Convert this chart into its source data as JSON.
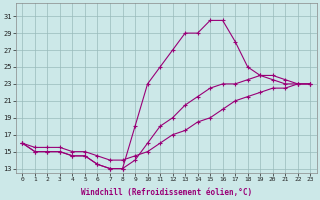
{
  "xlabel": "Windchill (Refroidissement éolien,°C)",
  "bg_color": "#cce8e8",
  "line_color": "#990077",
  "grid_color": "#99bbbb",
  "x_ticks": [
    0,
    1,
    2,
    3,
    4,
    5,
    6,
    7,
    8,
    9,
    10,
    11,
    12,
    13,
    14,
    15,
    16,
    17,
    18,
    19,
    20,
    21,
    22,
    23
  ],
  "y_ticks": [
    13,
    15,
    17,
    19,
    21,
    23,
    25,
    27,
    29,
    31
  ],
  "xlim": [
    -0.5,
    23.5
  ],
  "ylim": [
    12.5,
    32.5
  ],
  "lines": [
    {
      "x": [
        0,
        1,
        2,
        3,
        4,
        5,
        6,
        7,
        8,
        9,
        10,
        11,
        12,
        13,
        14,
        15,
        16,
        17,
        18,
        19,
        20,
        21,
        22,
        23
      ],
      "y": [
        16,
        15,
        15,
        15,
        14.5,
        14.5,
        13.5,
        13,
        13,
        18,
        23,
        25,
        27,
        29,
        29,
        30.5,
        30.5,
        28,
        25,
        24,
        23.5,
        23,
        23,
        23
      ]
    },
    {
      "x": [
        0,
        1,
        2,
        3,
        4,
        5,
        6,
        7,
        8,
        9,
        10,
        11,
        12,
        13,
        14,
        15,
        16,
        17,
        18,
        19,
        20,
        21,
        22,
        23
      ],
      "y": [
        16,
        15,
        15,
        15,
        14.5,
        14.5,
        13.5,
        13,
        13,
        14,
        16,
        18,
        19,
        20.5,
        21.5,
        22.5,
        23,
        23,
        23.5,
        24,
        24,
        23.5,
        23,
        23
      ]
    },
    {
      "x": [
        0,
        1,
        2,
        3,
        4,
        5,
        6,
        7,
        8,
        9,
        10,
        11,
        12,
        13,
        14,
        15,
        16,
        17,
        18,
        19,
        20,
        21,
        22,
        23
      ],
      "y": [
        16,
        15.5,
        15.5,
        15.5,
        15,
        15,
        14.5,
        14,
        14,
        14.5,
        15,
        16,
        17,
        17.5,
        18.5,
        19,
        20,
        21,
        21.5,
        22,
        22.5,
        22.5,
        23,
        23
      ]
    }
  ]
}
